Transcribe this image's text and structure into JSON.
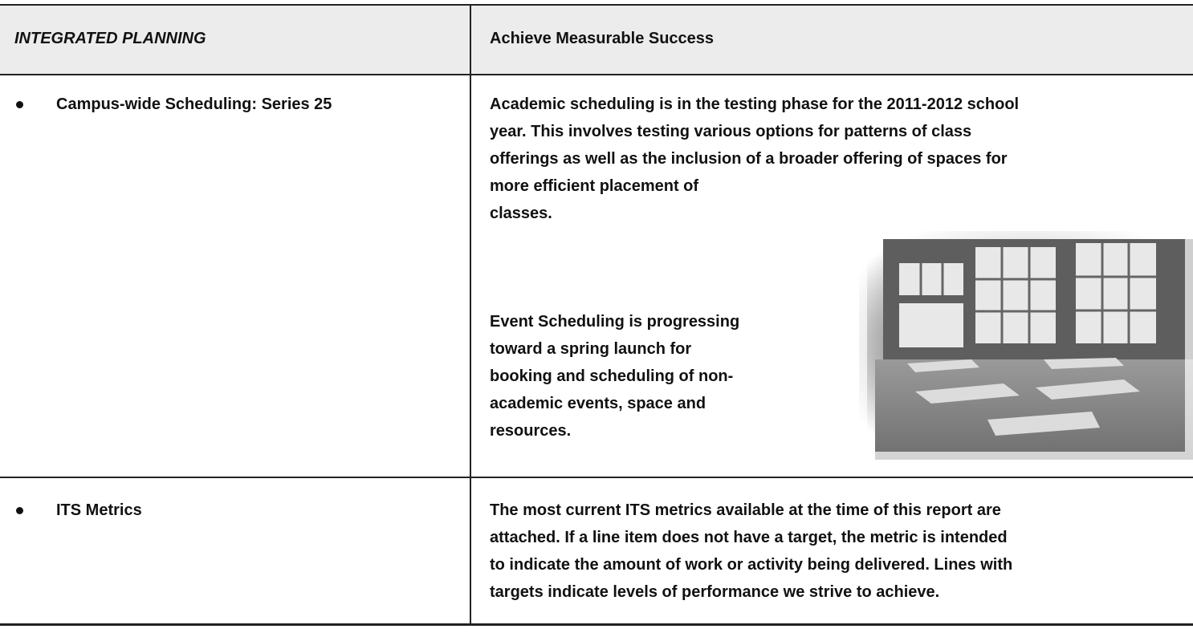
{
  "header": {
    "left": "INTEGRATED PLANNING",
    "right": "Achieve Measurable Success"
  },
  "rows": [
    {
      "item": "Campus-wide Scheduling: Series 25",
      "paragraphs": [
        [
          "Academic scheduling is in the testing phase for the 2011-2012 school",
          "year.  This involves testing various options for patterns of class",
          "offerings as well as the inclusion of a broader offering of spaces for",
          "more efficient placement of",
          "classes."
        ],
        [
          "Event Scheduling is progressing",
          "toward a spring launch for",
          "booking and scheduling of non-",
          "academic events, space and",
          "resources."
        ]
      ]
    },
    {
      "item": "ITS Metrics",
      "paragraphs": [
        [
          "The most current ITS metrics available at the time of this report are",
          "attached. If a line item does not have a target, the metric is intended",
          "to indicate the amount of work or activity being delivered. Lines with",
          "targets indicate levels of performance we strive to achieve."
        ]
      ]
    }
  ]
}
